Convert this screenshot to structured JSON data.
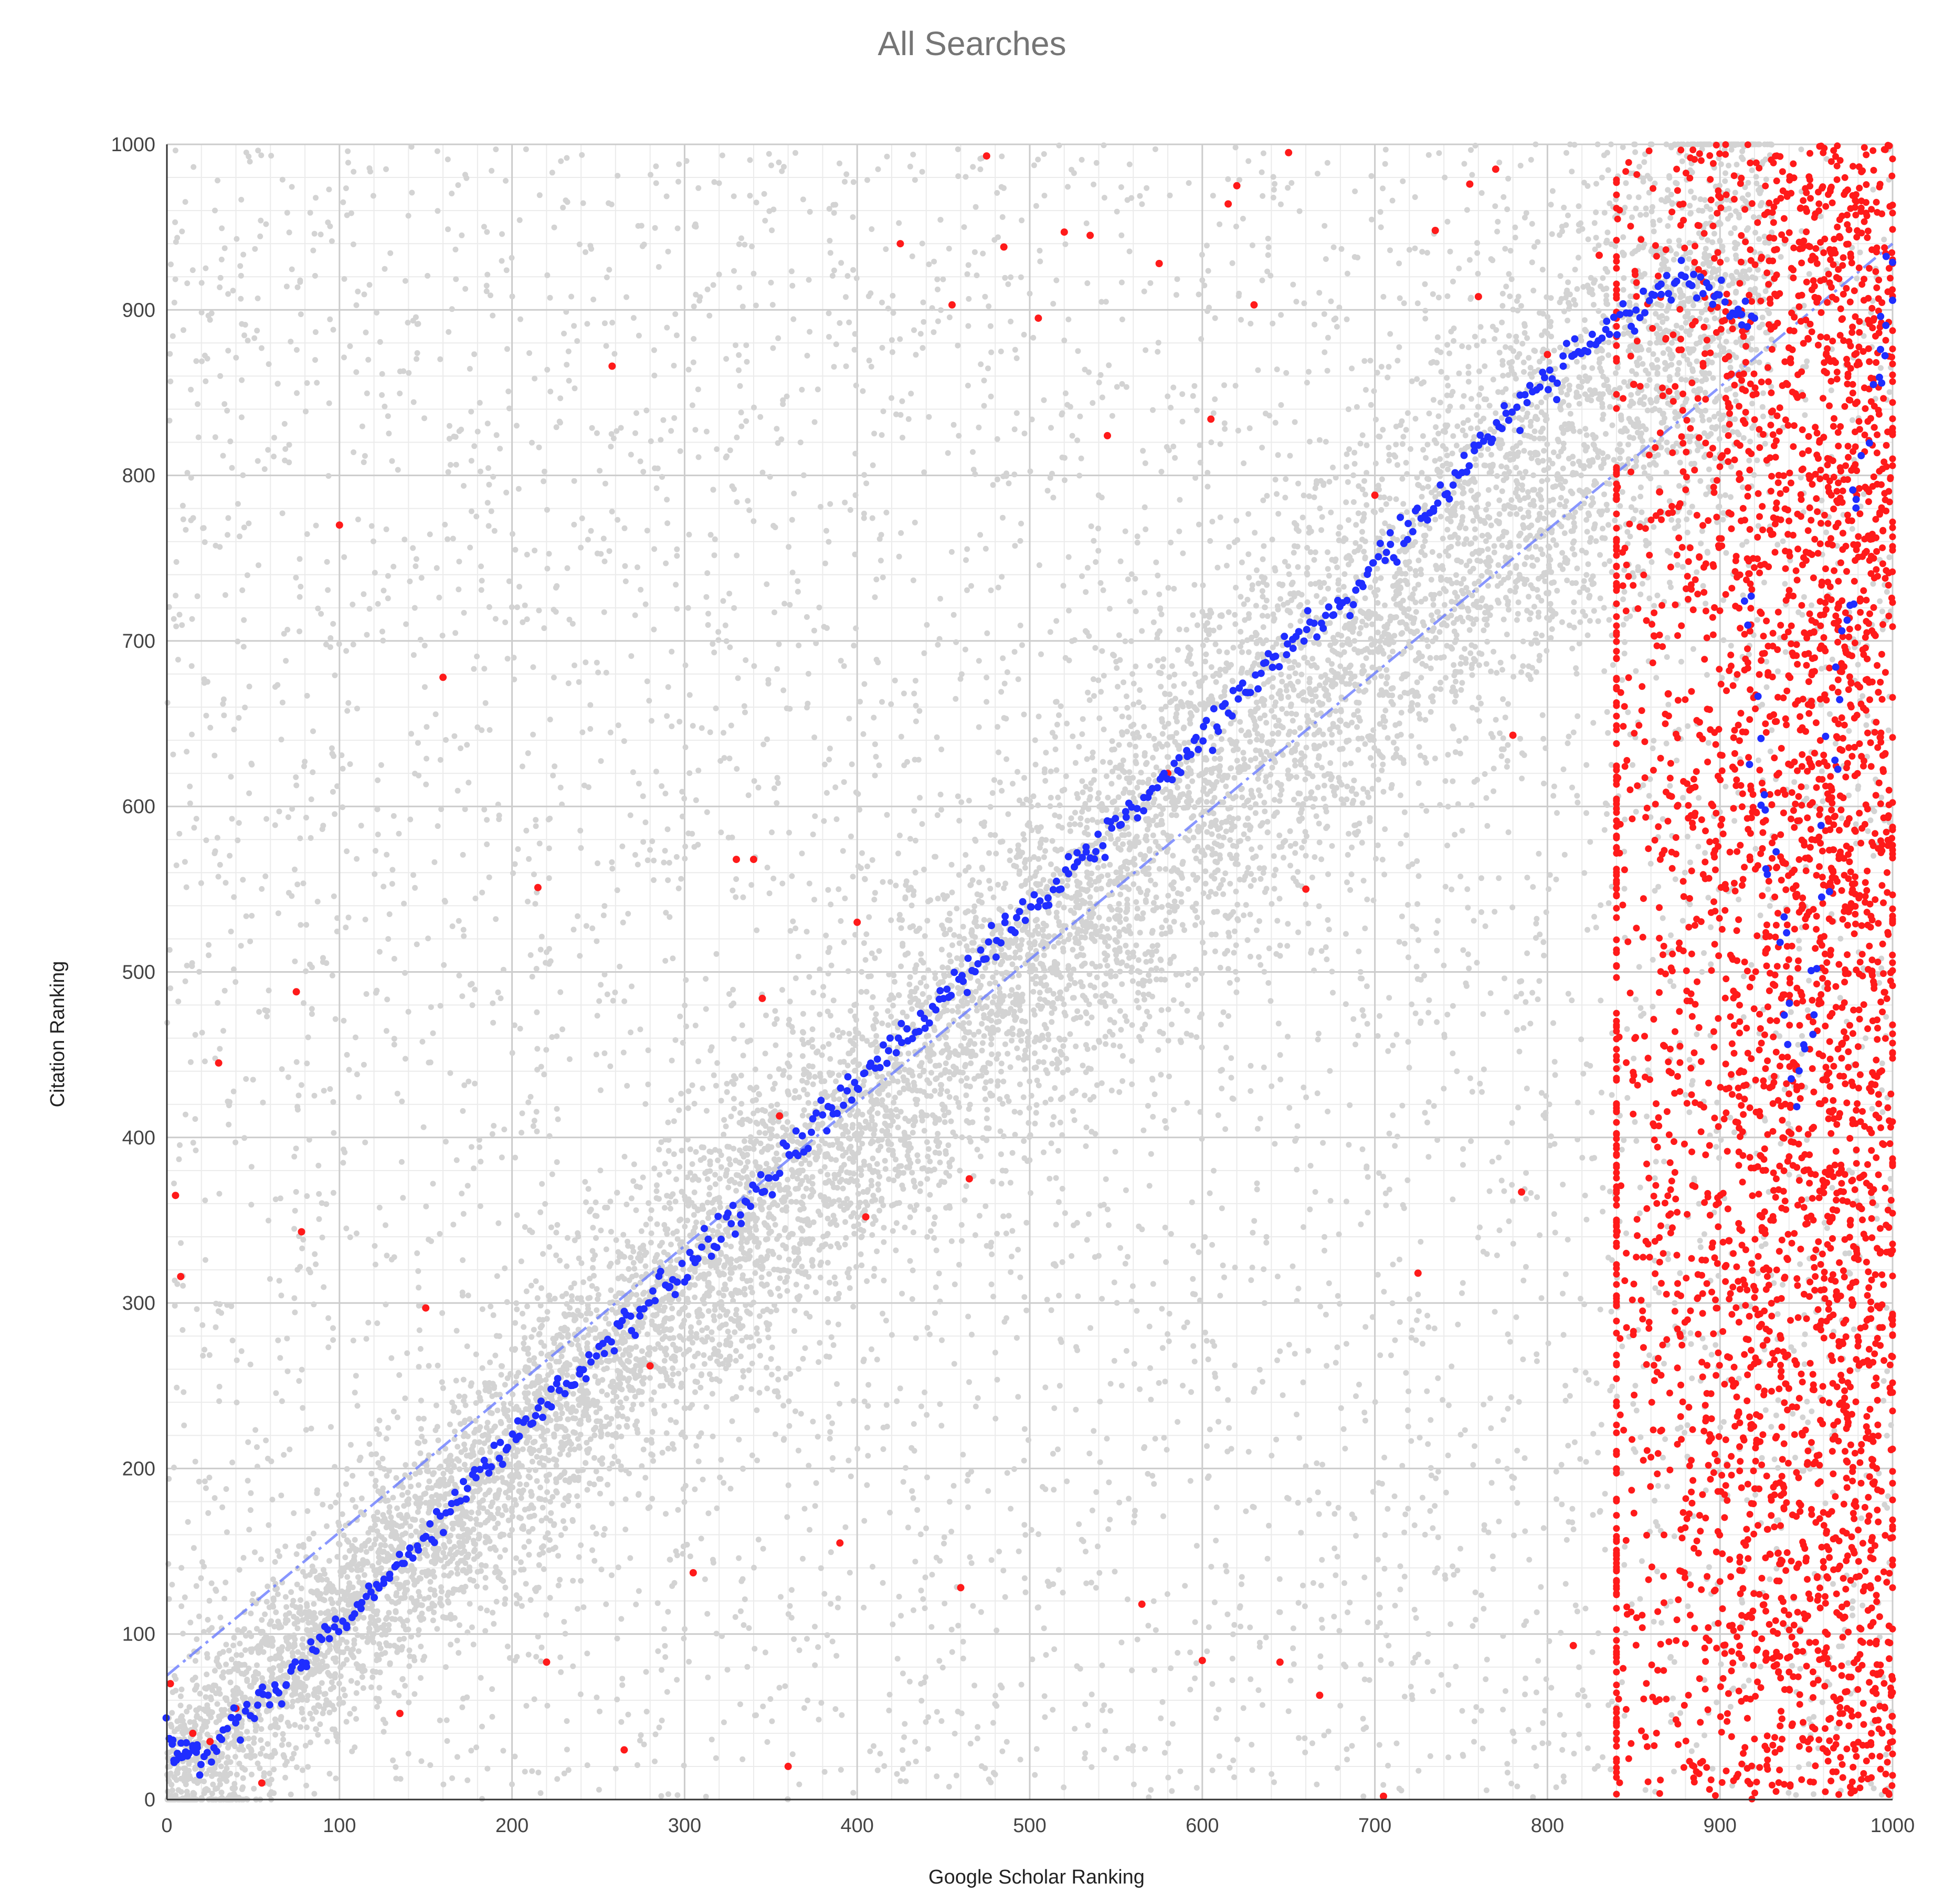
{
  "chart_data": {
    "type": "scatter",
    "title": "All Searches",
    "xlabel": "Google Scholar Ranking",
    "ylabel": "Citation Ranking",
    "xlim": [
      0,
      1000
    ],
    "ylim": [
      0,
      1000
    ],
    "x_ticks": [
      "0",
      "100",
      "200",
      "300",
      "400",
      "500",
      "600",
      "700",
      "800",
      "900",
      "1000"
    ],
    "y_ticks": [
      "0",
      "100",
      "200",
      "300",
      "400",
      "500",
      "600",
      "700",
      "800",
      "900",
      "1000"
    ],
    "grid": true,
    "minor_gridlines_per_major": 4,
    "legend": "none",
    "colors": {
      "background_points": "#d3d3d3",
      "outlier_points": "#ff1a1a",
      "mean_points": "#1f2dff",
      "trend_line": "#6b7dff",
      "major_grid": "#cccccc",
      "minor_grid": "#ebebeb"
    },
    "series": [
      {
        "description": "individual search results (dense gray cloud along the diagonal plus uniform scatter)",
        "color": "#d3d3d3",
        "approx_count": 14000,
        "along_diagonal": "band y ≈ x, width about ±60 ranks",
        "uniform_region": "x 0–1000, y 0–1000"
      },
      {
        "description": "average citation ranking per Google Scholar rank (blue dots)",
        "color": "#1f2dff",
        "points": [
          [
            0,
            45
          ],
          [
            5,
            25
          ],
          [
            10,
            30
          ],
          [
            15,
            35
          ],
          [
            20,
            25
          ],
          [
            30,
            35
          ],
          [
            40,
            45
          ],
          [
            50,
            55
          ],
          [
            60,
            62
          ],
          [
            70,
            72
          ],
          [
            80,
            85
          ],
          [
            90,
            95
          ],
          [
            100,
            108
          ],
          [
            110,
            118
          ],
          [
            120,
            128
          ],
          [
            130,
            138
          ],
          [
            140,
            148
          ],
          [
            150,
            160
          ],
          [
            160,
            172
          ],
          [
            170,
            182
          ],
          [
            180,
            195
          ],
          [
            190,
            205
          ],
          [
            200,
            218
          ],
          [
            210,
            228
          ],
          [
            220,
            238
          ],
          [
            230,
            248
          ],
          [
            240,
            258
          ],
          [
            250,
            268
          ],
          [
            260,
            280
          ],
          [
            270,
            290
          ],
          [
            280,
            300
          ],
          [
            290,
            310
          ],
          [
            300,
            320
          ],
          [
            310,
            332
          ],
          [
            320,
            342
          ],
          [
            330,
            352
          ],
          [
            340,
            365
          ],
          [
            350,
            378
          ],
          [
            360,
            390
          ],
          [
            370,
            402
          ],
          [
            380,
            412
          ],
          [
            390,
            422
          ],
          [
            400,
            432
          ],
          [
            410,
            442
          ],
          [
            420,
            452
          ],
          [
            430,
            462
          ],
          [
            440,
            472
          ],
          [
            450,
            485
          ],
          [
            460,
            496
          ],
          [
            470,
            508
          ],
          [
            480,
            518
          ],
          [
            490,
            528
          ],
          [
            500,
            538
          ],
          [
            510,
            548
          ],
          [
            520,
            558
          ],
          [
            530,
            568
          ],
          [
            540,
            578
          ],
          [
            550,
            588
          ],
          [
            560,
            598
          ],
          [
            570,
            608
          ],
          [
            580,
            618
          ],
          [
            590,
            628
          ],
          [
            600,
            640
          ],
          [
            610,
            652
          ],
          [
            620,
            664
          ],
          [
            630,
            676
          ],
          [
            640,
            688
          ],
          [
            650,
            698
          ],
          [
            660,
            706
          ],
          [
            670,
            712
          ],
          [
            680,
            722
          ],
          [
            690,
            734
          ],
          [
            700,
            746
          ],
          [
            710,
            758
          ],
          [
            720,
            768
          ],
          [
            730,
            780
          ],
          [
            740,
            792
          ],
          [
            750,
            804
          ],
          [
            760,
            816
          ],
          [
            770,
            828
          ],
          [
            780,
            838
          ],
          [
            790,
            848
          ],
          [
            800,
            858
          ],
          [
            810,
            868
          ],
          [
            820,
            876
          ],
          [
            830,
            886
          ],
          [
            840,
            894
          ],
          [
            850,
            902
          ],
          [
            860,
            906
          ],
          [
            870,
            912
          ],
          [
            880,
            916
          ],
          [
            890,
            912
          ],
          [
            900,
            906
          ],
          [
            910,
            900
          ],
          [
            920,
            895
          ],
          [
            915,
            715
          ],
          [
            920,
            640
          ],
          [
            925,
            600
          ],
          [
            930,
            555
          ],
          [
            935,
            520
          ],
          [
            940,
            470
          ],
          [
            945,
            430
          ],
          [
            950,
            460
          ],
          [
            955,
            500
          ],
          [
            960,
            560
          ],
          [
            965,
            620
          ],
          [
            970,
            680
          ],
          [
            975,
            720
          ],
          [
            980,
            780
          ],
          [
            985,
            820
          ],
          [
            990,
            860
          ],
          [
            995,
            890
          ],
          [
            1000,
            920
          ]
        ]
      },
      {
        "description": "outlier search results (red dots), dense vertical band at Google Scholar rank ~840–1000 plus scattered points",
        "color": "#ff1a1a",
        "dense_band": {
          "x_range": [
            840,
            1000
          ],
          "y_range": [
            0,
            1000
          ]
        },
        "scattered_points": [
          [
            2,
            70
          ],
          [
            5,
            365
          ],
          [
            8,
            316
          ],
          [
            15,
            40
          ],
          [
            25,
            35
          ],
          [
            30,
            445
          ],
          [
            40,
            55
          ],
          [
            55,
            10
          ],
          [
            75,
            488
          ],
          [
            78,
            343
          ],
          [
            100,
            770
          ],
          [
            135,
            52
          ],
          [
            150,
            297
          ],
          [
            160,
            678
          ],
          [
            215,
            551
          ],
          [
            220,
            83
          ],
          [
            258,
            866
          ],
          [
            265,
            30
          ],
          [
            280,
            262
          ],
          [
            305,
            137
          ],
          [
            330,
            568
          ],
          [
            340,
            568
          ],
          [
            345,
            484
          ],
          [
            355,
            413
          ],
          [
            360,
            20
          ],
          [
            390,
            155
          ],
          [
            400,
            530
          ],
          [
            405,
            352
          ],
          [
            425,
            940
          ],
          [
            455,
            903
          ],
          [
            460,
            128
          ],
          [
            465,
            375
          ],
          [
            475,
            993
          ],
          [
            485,
            938
          ],
          [
            505,
            895
          ],
          [
            520,
            947
          ],
          [
            535,
            945
          ],
          [
            545,
            824
          ],
          [
            565,
            118
          ],
          [
            575,
            928
          ],
          [
            580,
            620
          ],
          [
            600,
            84
          ],
          [
            605,
            834
          ],
          [
            615,
            964
          ],
          [
            620,
            975
          ],
          [
            630,
            903
          ],
          [
            645,
            83
          ],
          [
            650,
            995
          ],
          [
            660,
            550
          ],
          [
            668,
            63
          ],
          [
            700,
            788
          ],
          [
            705,
            2
          ],
          [
            725,
            318
          ],
          [
            735,
            948
          ],
          [
            755,
            976
          ],
          [
            760,
            908
          ],
          [
            770,
            985
          ],
          [
            780,
            643
          ],
          [
            785,
            367
          ],
          [
            800,
            873
          ],
          [
            815,
            93
          ],
          [
            830,
            933
          ],
          [
            850,
            855
          ],
          [
            865,
            790
          ],
          [
            870,
            668
          ]
        ]
      },
      {
        "description": "trend line (dashed light blue)",
        "color": "#6b7dff",
        "line": [
          [
            0,
            75
          ],
          [
            1000,
            940
          ]
        ]
      }
    ]
  }
}
